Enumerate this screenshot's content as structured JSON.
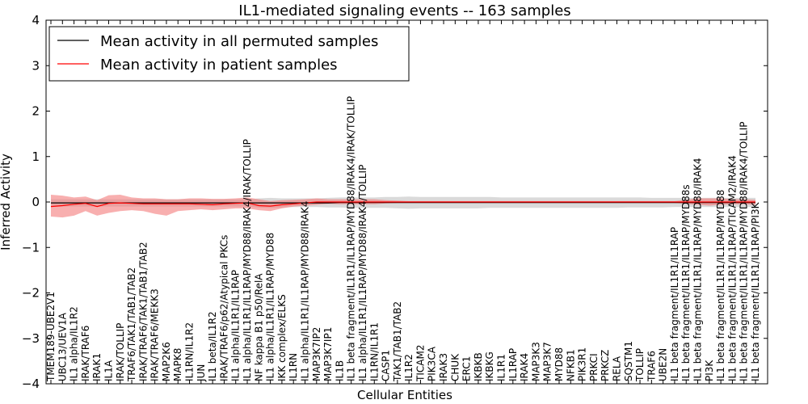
{
  "chart_data": {
    "type": "line",
    "title": "IL1-mediated signaling events -- 163 samples",
    "xlabel": "Cellular Entities",
    "ylabel": "Inferred Activity",
    "ylim": [
      -4,
      4
    ],
    "yticks": [
      -4,
      -3,
      -2,
      -1,
      0,
      1,
      2,
      3,
      4
    ],
    "ytick_labels": [
      "−4",
      "−3",
      "−2",
      "−1",
      "0",
      "1",
      "2",
      "3",
      "4"
    ],
    "legend_position": "top-left",
    "categories": [
      "TMEM189-UBE2V1",
      "UBC13/UEV1A",
      "IL1 alpha/IL1R2",
      "IRAK/TRAF6",
      "IRAK1",
      "IL1A",
      "IRAK/TOLLIP",
      "TRAF6/TAK1/TAB1/TAB2",
      "IRAK/TRAF6/TAK1/TAB1/TAB2",
      "IRAK/TRAF6/MEKK3",
      "MAP2K6",
      "MAPK8",
      "IL1RN/IL1R2",
      "JUN",
      "IL1 beta/IL1R2",
      "IRAK/TRAF6/p62/Atypical PKCs",
      "IL1 alpha/IL1R1/IL1RAP",
      "IL1 alpha/IL1R1/IL1RAP/MYD88/IRAK4/IRAK/TOLLIP",
      "NF kappa B1 p50/RelA",
      "IL1 alpha/IL1R1/IL1RAP/MYD88",
      "IKK complex/ELKS",
      "IL1RN",
      "IL1 alpha/IL1R1/IL1RAP/MYD88/IRAK4",
      "MAP3K7IP2",
      "MAP3K7IP1",
      "IL1B",
      "IL1 beta fragment/IL1R1/IL1RAP/MYD88/IRAK4/IRAK/TOLLIP",
      "IL1 alpha/IL1R1/IL1RAP/MYD88/IRAK4/TOLLIP",
      "IL1RN/IL1R1",
      "CASP1",
      "TAK1/TAB1/TAB2",
      "IL1R2",
      "TICAM2",
      "PIK3CA",
      "IRAK3",
      "CHUK",
      "ERC1",
      "IKBKB",
      "IKBKG",
      "IL1R1",
      "IL1RAP",
      "IRAK4",
      "MAP3K3",
      "MAP3K7",
      "MYD88",
      "NFKB1",
      "PIK3R1",
      "PRKCI",
      "PRKCZ",
      "RELA",
      "SQSTM1",
      "TOLLIP",
      "TRAF6",
      "UBE2N",
      "IL1 beta fragment/IL1R1/IL1RAP",
      "IL1 beta fragment/IL1R1/IL1RAP/MYD88s",
      "IL1 beta fragment/IL1R1/IL1RAP/MYD88/IRAK4",
      "PI3K",
      "IL1 beta fragment/IL1R1/IL1RAP/MYD88",
      "IL1 beta fragment/IL1R1/IL1RAP/TICAM2/IRAK4",
      "IL1 beta fragment/IL1R1/IL1RAP/MYD88/IRAK4/TOLLIP",
      "IL1 beta fragment/IL1R1/IL1RAP/PI3K"
    ],
    "series": [
      {
        "name": "Mean activity in all permuted samples",
        "color": "#000000",
        "band_color": "#bbbbbb",
        "values": [
          -0.02,
          -0.02,
          -0.02,
          -0.02,
          -0.02,
          -0.02,
          -0.02,
          -0.02,
          -0.02,
          -0.02,
          -0.02,
          -0.02,
          -0.02,
          -0.02,
          -0.02,
          -0.02,
          -0.02,
          -0.02,
          -0.02,
          -0.02,
          -0.02,
          -0.02,
          -0.02,
          -0.02,
          -0.02,
          -0.01,
          -0.01,
          -0.01,
          -0.01,
          -0.01,
          -0.01,
          -0.01,
          -0.01,
          -0.01,
          -0.01,
          -0.01,
          -0.01,
          -0.01,
          -0.01,
          -0.01,
          -0.01,
          -0.01,
          -0.01,
          -0.01,
          -0.01,
          -0.01,
          -0.01,
          -0.01,
          -0.01,
          -0.01,
          -0.01,
          -0.01,
          -0.01,
          -0.01,
          -0.01,
          -0.01,
          -0.01,
          -0.01,
          -0.01,
          -0.01,
          -0.01,
          -0.01
        ],
        "band_low": [
          -0.1,
          -0.1,
          -0.1,
          -0.1,
          -0.1,
          -0.1,
          -0.1,
          -0.1,
          -0.1,
          -0.1,
          -0.1,
          -0.1,
          -0.1,
          -0.1,
          -0.1,
          -0.1,
          -0.1,
          -0.1,
          -0.12,
          -0.13,
          -0.12,
          -0.11,
          -0.11,
          -0.11,
          -0.12,
          -0.12,
          -0.13,
          -0.13,
          -0.13,
          -0.13,
          -0.14,
          -0.15,
          -0.14,
          -0.14,
          -0.14,
          -0.14,
          -0.14,
          -0.14,
          -0.13,
          -0.13,
          -0.13,
          -0.13,
          -0.13,
          -0.13,
          -0.13,
          -0.13,
          -0.13,
          -0.13,
          -0.13,
          -0.13,
          -0.12,
          -0.12,
          -0.12,
          -0.12,
          -0.11,
          -0.11,
          -0.11,
          -0.11,
          -0.11,
          -0.11,
          -0.11,
          -0.11
        ],
        "band_high": [
          0.06,
          0.06,
          0.06,
          0.06,
          0.06,
          0.06,
          0.06,
          0.06,
          0.06,
          0.06,
          0.06,
          0.06,
          0.06,
          0.06,
          0.06,
          0.06,
          0.06,
          0.06,
          0.08,
          0.09,
          0.08,
          0.08,
          0.08,
          0.08,
          0.09,
          0.1,
          0.1,
          0.1,
          0.1,
          0.11,
          0.11,
          0.12,
          0.11,
          0.11,
          0.11,
          0.11,
          0.11,
          0.11,
          0.11,
          0.1,
          0.1,
          0.1,
          0.1,
          0.1,
          0.1,
          0.1,
          0.1,
          0.1,
          0.1,
          0.1,
          0.1,
          0.1,
          0.09,
          0.09,
          0.09,
          0.09,
          0.09,
          0.09,
          0.09,
          0.09,
          0.09,
          0.09
        ]
      },
      {
        "name": "Mean activity in patient samples",
        "color": "#ff0000",
        "band_color": "#f47a7a",
        "values": [
          -0.1,
          -0.08,
          -0.05,
          -0.03,
          -0.1,
          -0.03,
          -0.02,
          -0.03,
          -0.04,
          -0.04,
          -0.04,
          -0.04,
          -0.04,
          -0.05,
          -0.06,
          -0.04,
          -0.03,
          -0.02,
          -0.08,
          -0.09,
          -0.06,
          -0.04,
          -0.02,
          0.0,
          0.0,
          0.0,
          0.0,
          0.0,
          0.0,
          0.0,
          0.0,
          0.0,
          0.0,
          0.0,
          0.0,
          0.0,
          0.0,
          0.0,
          0.0,
          0.0,
          0.0,
          0.0,
          0.0,
          0.0,
          0.0,
          0.0,
          0.0,
          0.0,
          0.0,
          0.0,
          0.0,
          0.0,
          0.0,
          0.0,
          0.0,
          0.0,
          0.0,
          0.0,
          0.0,
          0.0,
          0.0,
          0.0
        ],
        "band_low": [
          -0.32,
          -0.34,
          -0.3,
          -0.2,
          -0.3,
          -0.24,
          -0.2,
          -0.18,
          -0.2,
          -0.26,
          -0.3,
          -0.2,
          -0.18,
          -0.16,
          -0.18,
          -0.16,
          -0.14,
          -0.14,
          -0.18,
          -0.2,
          -0.14,
          -0.1,
          -0.08,
          -0.06,
          -0.04,
          -0.05,
          -0.05,
          -0.05,
          -0.05,
          -0.03,
          -0.02,
          -0.02,
          -0.02,
          -0.02,
          -0.02,
          -0.02,
          -0.02,
          -0.02,
          -0.02,
          -0.02,
          -0.02,
          -0.02,
          -0.02,
          -0.02,
          -0.02,
          -0.02,
          -0.02,
          -0.02,
          -0.02,
          -0.02,
          -0.02,
          -0.02,
          -0.02,
          -0.02,
          -0.02,
          -0.04,
          -0.06,
          -0.08,
          -0.06,
          -0.05,
          -0.05,
          -0.06
        ],
        "band_high": [
          0.16,
          0.14,
          0.1,
          0.12,
          0.04,
          0.15,
          0.16,
          0.1,
          0.08,
          0.08,
          0.06,
          0.06,
          0.08,
          0.08,
          0.07,
          0.07,
          0.08,
          0.1,
          0.06,
          0.02,
          0.04,
          0.05,
          0.06,
          0.08,
          0.06,
          0.06,
          0.06,
          0.06,
          0.06,
          0.04,
          0.03,
          0.02,
          0.02,
          0.02,
          0.02,
          0.02,
          0.02,
          0.02,
          0.02,
          0.02,
          0.02,
          0.02,
          0.02,
          0.02,
          0.02,
          0.02,
          0.02,
          0.02,
          0.02,
          0.02,
          0.02,
          0.02,
          0.02,
          0.02,
          0.02,
          0.05,
          0.08,
          0.08,
          0.08,
          0.06,
          0.06,
          0.05
        ]
      }
    ]
  }
}
